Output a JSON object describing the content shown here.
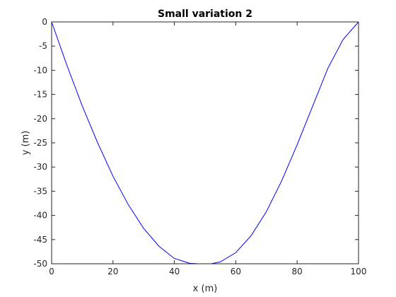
{
  "chart_data": {
    "type": "line",
    "title": "Small variation 2",
    "xlabel": "x (m)",
    "ylabel": "y (m)",
    "xlim": [
      0,
      100
    ],
    "ylim": [
      -50,
      0
    ],
    "xticks": [
      0,
      20,
      40,
      60,
      80,
      100
    ],
    "yticks": [
      0,
      -5,
      -10,
      -15,
      -20,
      -25,
      -30,
      -35,
      -40,
      -45,
      -50
    ],
    "grid": false,
    "legend": "none",
    "line_color": "#0000ff",
    "series": [
      {
        "x": [
          0,
          5,
          10,
          15,
          20,
          25,
          30,
          35,
          40,
          45,
          48,
          50,
          52,
          55,
          60,
          65,
          70,
          75,
          80,
          85,
          90,
          95,
          100
        ],
        "y": [
          0,
          -9.0,
          -17.4,
          -25.0,
          -31.9,
          -37.8,
          -42.7,
          -46.4,
          -48.9,
          -49.9,
          -50.0,
          -50.0,
          -50.0,
          -49.6,
          -47.7,
          -44.2,
          -39.2,
          -32.8,
          -25.4,
          -17.5,
          -9.6,
          -3.6,
          0
        ]
      }
    ]
  }
}
